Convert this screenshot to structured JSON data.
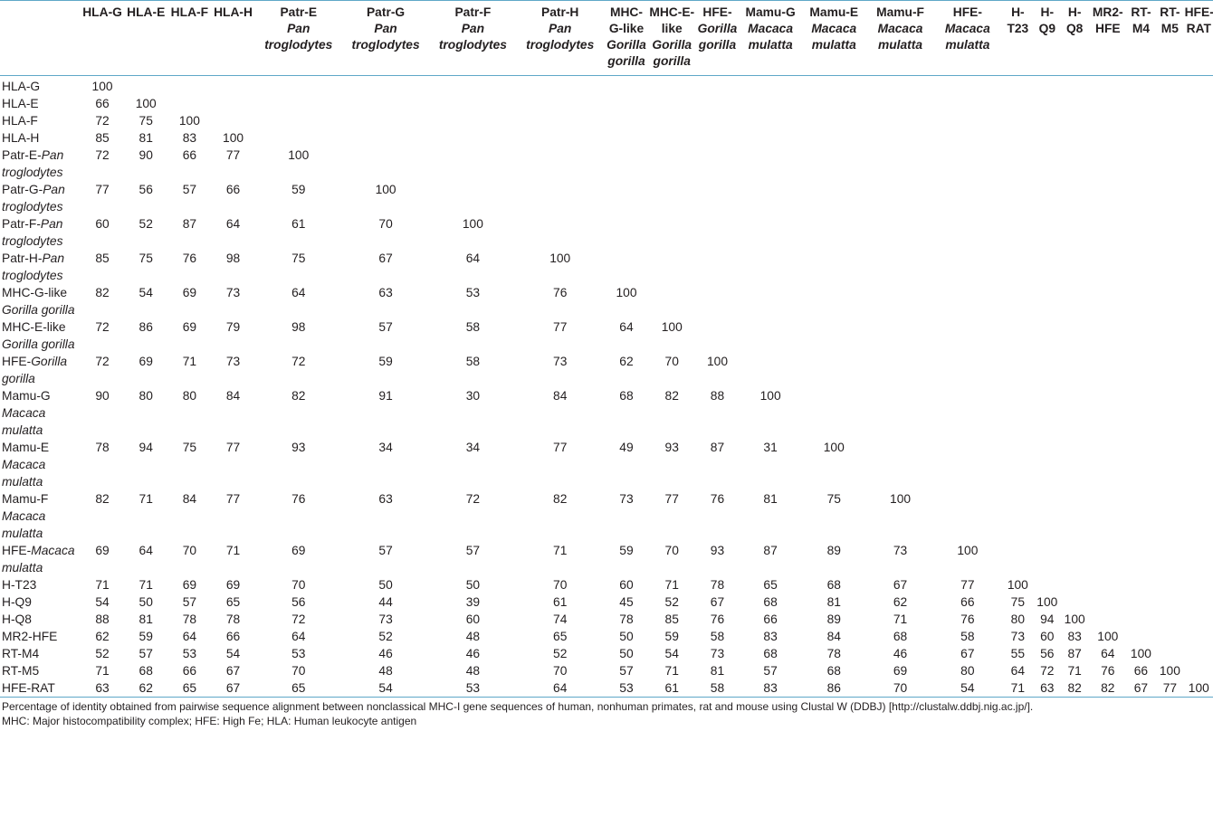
{
  "columns": [
    {
      "name": "HLA-G",
      "species": ""
    },
    {
      "name": "HLA-E",
      "species": ""
    },
    {
      "name": "HLA-F",
      "species": ""
    },
    {
      "name": "HLA-H",
      "species": ""
    },
    {
      "name": "Patr-E",
      "species": "Pan troglodytes"
    },
    {
      "name": "Patr-G",
      "species": "Pan troglodytes"
    },
    {
      "name": "Patr-F",
      "species": "Pan troglodytes"
    },
    {
      "name": "Patr-H",
      "species": "Pan troglodytes"
    },
    {
      "name": "MHC-G-like",
      "species": "Gorilla gorilla"
    },
    {
      "name": "MHC-E-like",
      "species": "Gorilla gorilla"
    },
    {
      "name": "HFE-",
      "species": "Gorilla gorilla"
    },
    {
      "name": "Mamu-G",
      "species": "Macaca mulatta"
    },
    {
      "name": "Mamu-E",
      "species": "Macaca mulatta"
    },
    {
      "name": "Mamu-F",
      "species": "Macaca mulatta"
    },
    {
      "name": "HFE-",
      "species": "Macaca mulatta"
    },
    {
      "name": "H-T23",
      "species": ""
    },
    {
      "name": "H-Q9",
      "species": ""
    },
    {
      "name": "H-Q8",
      "species": ""
    },
    {
      "name": "MR2-HFE",
      "species": ""
    },
    {
      "name": "RT-M4",
      "species": ""
    },
    {
      "name": "RT-M5",
      "species": ""
    },
    {
      "name": "HFE-RAT",
      "species": ""
    }
  ],
  "rows": [
    {
      "name": "HLA-G",
      "species": "",
      "values": [
        "100"
      ]
    },
    {
      "name": "HLA-E",
      "species": "",
      "values": [
        "66",
        "100"
      ]
    },
    {
      "name": "HLA-F",
      "species": "",
      "values": [
        "72",
        "75",
        "100"
      ]
    },
    {
      "name": "HLA-H",
      "species": "",
      "values": [
        "85",
        "81",
        "83",
        "100"
      ]
    },
    {
      "name": "Patr-E-",
      "species": "Pan troglodytes",
      "values": [
        "72",
        "90",
        "66",
        "77",
        "100"
      ]
    },
    {
      "name": "Patr-G-",
      "species": "Pan troglodytes",
      "values": [
        "77",
        "56",
        "57",
        "66",
        "59",
        "100"
      ]
    },
    {
      "name": "Patr-F-",
      "species": "Pan troglodytes",
      "values": [
        "60",
        "52",
        "87",
        "64",
        "61",
        "70",
        "100"
      ]
    },
    {
      "name": "Patr-H-",
      "species": "Pan troglodytes",
      "values": [
        "85",
        "75",
        "76",
        "98",
        "75",
        "67",
        "64",
        "100"
      ]
    },
    {
      "name": "MHC-G-like ",
      "species": "Gorilla gorilla",
      "values": [
        "82",
        "54",
        "69",
        "73",
        "64",
        "63",
        "53",
        "76",
        "100"
      ]
    },
    {
      "name": "MHC-E-like ",
      "species": "Gorilla gorilla",
      "values": [
        "72",
        "86",
        "69",
        "79",
        "98",
        "57",
        "58",
        "77",
        "64",
        "100"
      ]
    },
    {
      "name": "HFE-",
      "species": "Gorilla gorilla",
      "values": [
        "72",
        "69",
        "71",
        "73",
        "72",
        "59",
        "58",
        "73",
        "62",
        "70",
        "100"
      ]
    },
    {
      "name": "Mamu-G ",
      "species": "Macaca mulatta",
      "values": [
        "90",
        "80",
        "80",
        "84",
        "82",
        "91",
        "30",
        "84",
        "68",
        "82",
        "88",
        "100"
      ]
    },
    {
      "name": "Mamu-E ",
      "species": "Macaca mulatta",
      "values": [
        "78",
        "94",
        "75",
        "77",
        "93",
        "34",
        "34",
        "77",
        "49",
        "93",
        "87",
        "31",
        "100"
      ]
    },
    {
      "name": "Mamu-F ",
      "species": "Macaca mulatta",
      "values": [
        "82",
        "71",
        "84",
        "77",
        "76",
        "63",
        "72",
        "82",
        "73",
        "77",
        "76",
        "81",
        "75",
        "100"
      ]
    },
    {
      "name": "HFE-",
      "species": "Macaca mulatta",
      "values": [
        "69",
        "64",
        "70",
        "71",
        "69",
        "57",
        "57",
        "71",
        "59",
        "70",
        "93",
        "87",
        "89",
        "73",
        "100"
      ]
    },
    {
      "name": "H-T23",
      "species": "",
      "values": [
        "71",
        "71",
        "69",
        "69",
        "70",
        "50",
        "50",
        "70",
        "60",
        "71",
        "78",
        "65",
        "68",
        "67",
        "77",
        "100"
      ]
    },
    {
      "name": "H-Q9",
      "species": "",
      "values": [
        "54",
        "50",
        "57",
        "65",
        "56",
        "44",
        "39",
        "61",
        "45",
        "52",
        "67",
        "68",
        "81",
        "62",
        "66",
        "75",
        "100"
      ]
    },
    {
      "name": "H-Q8",
      "species": "",
      "values": [
        "88",
        "81",
        "78",
        "78",
        "72",
        "73",
        "60",
        "74",
        "78",
        "85",
        "76",
        "66",
        "89",
        "71",
        "76",
        "80",
        "94",
        "100"
      ]
    },
    {
      "name": "MR2-HFE",
      "species": "",
      "values": [
        "62",
        "59",
        "64",
        "66",
        "64",
        "52",
        "48",
        "65",
        "50",
        "59",
        "58",
        "83",
        "84",
        "68",
        "58",
        "73",
        "60",
        "83",
        "100"
      ]
    },
    {
      "name": "RT-M4",
      "species": "",
      "values": [
        "52",
        "57",
        "53",
        "54",
        "53",
        "46",
        "46",
        "52",
        "50",
        "54",
        "73",
        "68",
        "78",
        "46",
        "67",
        "55",
        "56",
        "87",
        "64",
        "100"
      ]
    },
    {
      "name": "RT-M5",
      "species": "",
      "values": [
        "71",
        "68",
        "66",
        "67",
        "70",
        "48",
        "48",
        "70",
        "57",
        "71",
        "81",
        "57",
        "68",
        "69",
        "80",
        "64",
        "72",
        "71",
        "76",
        "66",
        "100"
      ]
    },
    {
      "name": "HFE-RAT",
      "species": "",
      "values": [
        "63",
        "62",
        "65",
        "67",
        "65",
        "54",
        "53",
        "64",
        "53",
        "61",
        "58",
        "83",
        "86",
        "70",
        "54",
        "71",
        "63",
        "82",
        "82",
        "67",
        "77",
        "100"
      ]
    }
  ],
  "footnote": {
    "line1": "Percentage of identity obtained from pairwise sequence alignment between nonclassical MHC-I gene sequences of human, nonhuman primates, rat and mouse using Clustal W (DDBJ) [http://clustalw.ddbj.nig.ac.jp/].",
    "line2": "MHC: Major histocompatibility complex; HFE: High Fe; HLA: Human leukocyte antigen"
  }
}
